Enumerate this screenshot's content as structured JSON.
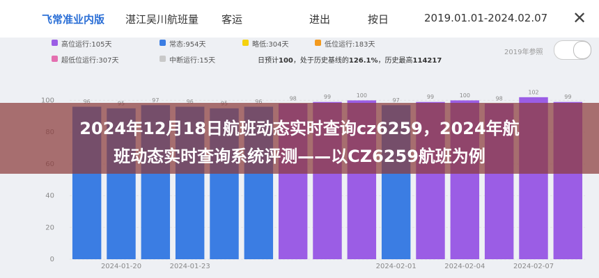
{
  "header": {
    "brand": "飞常准业内版",
    "airport": "湛江吴川航班量",
    "category": "客运",
    "direction": "进出",
    "granularity": "按日",
    "date_range": "2019.01.01-2024.02.07"
  },
  "legend": [
    {
      "label": "高位运行:105天",
      "color": "#9b5de5"
    },
    {
      "label": "常态:954天",
      "color": "#3b7de3"
    },
    {
      "label": "略低:304天",
      "color": "#f5d20f"
    },
    {
      "label": "低位运行:183天",
      "color": "#f39a1e"
    },
    {
      "label": "超低位运行:307天",
      "color": "#e46fb0"
    },
    {
      "label": "中断运行:15天",
      "color": "#c9c9c9"
    }
  ],
  "summary": {
    "prefix": "日预计",
    "forecast": "100",
    "middle": "，处于历史基线的",
    "ratio": "126.1%",
    "suffix": "，历史最高",
    "max": "114217"
  },
  "toggle_label": "2019年参照",
  "banner": {
    "lines": [
      "2024年12月18日航班动态实时查询cz6259，2024年航",
      "班动态实时查询系统评测——以CZ6259航班为例"
    ]
  },
  "chart_data": {
    "type": "bar",
    "categories": [
      null,
      "2024-01-20",
      null,
      "2024-01-23",
      null,
      null,
      null,
      null,
      null,
      "2024-02-01",
      null,
      "2024-02-04",
      null,
      "2024-02-07",
      null
    ],
    "values": [
      96,
      95,
      97,
      96,
      95,
      96,
      98,
      99,
      100,
      97,
      99,
      100,
      98,
      102,
      99
    ],
    "colors": [
      "#3b7de3",
      "#3b7de3",
      "#3b7de3",
      "#3b7de3",
      "#3b7de3",
      "#3b7de3",
      "#9b5de5",
      "#9b5de5",
      "#9b5de5",
      "#3b7de3",
      "#9b5de5",
      "#9b5de5",
      "#9b5de5",
      "#9b5de5",
      "#9b5de5"
    ],
    "ylim": [
      0,
      105
    ],
    "yticks": [
      0,
      20,
      40,
      60,
      80,
      100
    ],
    "grid": true
  }
}
